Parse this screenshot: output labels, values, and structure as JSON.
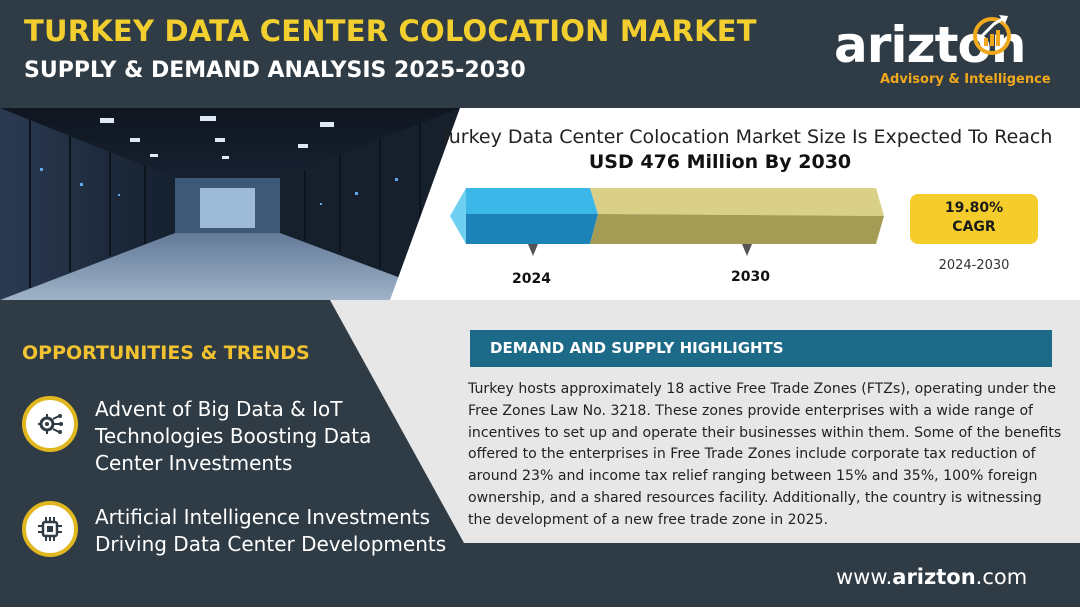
{
  "header": {
    "title_line1": "TURKEY DATA CENTER COLOCATION MARKET",
    "title_line2": "SUPPLY & DEMAND ANALYSIS 2025-2030"
  },
  "logo": {
    "wordmark": "arizton",
    "tagline": "Advisory & Intelligence",
    "icon": "growth-arrow-icon"
  },
  "market": {
    "line1": "Turkey Data Center Colocation Market Size Is Expected To Reach",
    "line2": "USD 476 Million By 2030",
    "year_start": "2024",
    "year_end": "2030",
    "cagr_value": "19.80%",
    "cagr_label": "CAGR",
    "cagr_period": "2024-2030"
  },
  "opportunities": {
    "title": "OPPORTUNITIES & TRENDS",
    "items": [
      {
        "text": "Advent of Big Data & IoT Technologies Boosting Data Center Investments",
        "icon": "gear-circuit-icon"
      },
      {
        "text": "Artificial Intelligence Investments Driving Data Center Developments",
        "icon": "ai-chip-icon"
      }
    ]
  },
  "highlights": {
    "title": "DEMAND AND SUPPLY HIGHLIGHTS",
    "body": "Turkey hosts approximately 18 active Free Trade Zones (FTZs), operating under the Free Zones Law No. 3218. These zones provide enterprises with a wide range of incentives to set up and operate their businesses within them. Some of the benefits offered to the enterprises in Free Trade Zones include corporate tax reduction of around 23% and income tax relief ranging between 15% and 35%, 100% foreign ownership, and a shared resources facility. Additionally, the country is witnessing the development of a new free trade zone in 2025."
  },
  "footer": {
    "prefix": "www.",
    "domain": "arizton",
    "suffix": ".com"
  },
  "colors": {
    "background": "#2f3c45",
    "title_yellow": "#f2cf2f",
    "accent_orange": "#f0a81c",
    "bar_blue": "#2ba3d6",
    "bar_khaki": "#d6cd84",
    "highlight_bar": "#1c6a87"
  }
}
